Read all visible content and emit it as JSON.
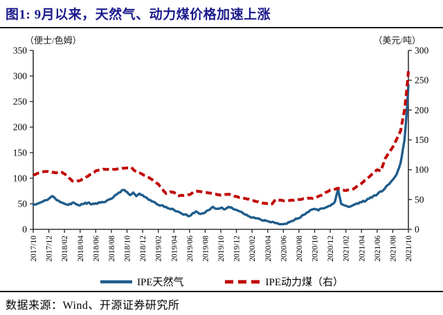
{
  "figure": {
    "title": "图1: 9月以来，天然气、动力煤价格加速上涨",
    "source_label": "数据来源：Wind、开源证券研究所"
  },
  "chart_data": {
    "type": "line",
    "title": "9月以来，天然气、动力煤价格加速上涨",
    "left_axis": {
      "unit": "（便士/色姆）",
      "min": 0,
      "max": 350,
      "step": 50
    },
    "right_axis": {
      "unit": "（美元/吨）",
      "min": 0,
      "max": 300,
      "step": 50
    },
    "x_tick_labels": [
      "2017/10",
      "2017/12",
      "2018/02",
      "2018/04",
      "2018/06",
      "2018/08",
      "2018/10",
      "2018/12",
      "2019/02",
      "2019/04",
      "2019/06",
      "2019/08",
      "2019/10",
      "2019/12",
      "2020/02",
      "2020/04",
      "2020/06",
      "2020/08",
      "2020/10",
      "2020/12",
      "2021/02",
      "2021/04",
      "2021/06",
      "2021/08",
      "2021/10"
    ],
    "x_months_total": 48,
    "grid": "off",
    "legend_position": "bottom",
    "series": [
      {
        "name": "IPE天然气",
        "axis": "left",
        "style": "solid",
        "color": "#1f5c8b",
        "points": [
          [
            0,
            49
          ],
          [
            0.5,
            50
          ],
          [
            1,
            53
          ],
          [
            2,
            60
          ],
          [
            2.5,
            65
          ],
          [
            3,
            57
          ],
          [
            3.5,
            53
          ],
          [
            4,
            50
          ],
          [
            4.5,
            48
          ],
          [
            5,
            52
          ],
          [
            5.5,
            49
          ],
          [
            6,
            47
          ],
          [
            6.5,
            50
          ],
          [
            7,
            52
          ],
          [
            7.5,
            49
          ],
          [
            8,
            51
          ],
          [
            9,
            53
          ],
          [
            10,
            60
          ],
          [
            10.5,
            67
          ],
          [
            11,
            72
          ],
          [
            11.5,
            77
          ],
          [
            12,
            73
          ],
          [
            12.4,
            67
          ],
          [
            12.8,
            72
          ],
          [
            13.2,
            65
          ],
          [
            13.6,
            70
          ],
          [
            14,
            67
          ],
          [
            14.4,
            63
          ],
          [
            15,
            57
          ],
          [
            16,
            48
          ],
          [
            17,
            44
          ],
          [
            18,
            38
          ],
          [
            19,
            31
          ],
          [
            20,
            26
          ],
          [
            20.8,
            35
          ],
          [
            21.4,
            30
          ],
          [
            22,
            33
          ],
          [
            23,
            44
          ],
          [
            23.5,
            40
          ],
          [
            24,
            42
          ],
          [
            24.5,
            39
          ],
          [
            25,
            44
          ],
          [
            25.5,
            41
          ],
          [
            26,
            38
          ],
          [
            27,
            30
          ],
          [
            27.5,
            26
          ],
          [
            28,
            23
          ],
          [
            29,
            20
          ],
          [
            30,
            16
          ],
          [
            31,
            12
          ],
          [
            31.7,
            10
          ],
          [
            32.3,
            11
          ],
          [
            33,
            16
          ],
          [
            34,
            22
          ],
          [
            35,
            33
          ],
          [
            36,
            40
          ],
          [
            36.5,
            37
          ],
          [
            37,
            41
          ],
          [
            38,
            46
          ],
          [
            38.6,
            54
          ],
          [
            39,
            78
          ],
          [
            39.4,
            50
          ],
          [
            40,
            46
          ],
          [
            40.5,
            44
          ],
          [
            41,
            48
          ],
          [
            42,
            53
          ],
          [
            43,
            60
          ],
          [
            43.5,
            65
          ],
          [
            44,
            68
          ],
          [
            45,
            80
          ],
          [
            45.5,
            88
          ],
          [
            46,
            97
          ],
          [
            46.5,
            108
          ],
          [
            47,
            130
          ],
          [
            47.5,
            175
          ],
          [
            47.8,
            230
          ],
          [
            48,
            282
          ]
        ]
      },
      {
        "name": "IPE动力煤（右）",
        "axis": "right",
        "style": "dashed",
        "color": "#c00000",
        "points": [
          [
            0,
            91
          ],
          [
            1,
            96
          ],
          [
            1.7,
            97
          ],
          [
            2,
            96
          ],
          [
            3,
            95
          ],
          [
            3.5,
            97
          ],
          [
            4,
            93
          ],
          [
            5,
            81
          ],
          [
            5.5,
            80
          ],
          [
            6,
            82
          ],
          [
            7,
            89
          ],
          [
            8,
            98
          ],
          [
            9,
            101
          ],
          [
            10,
            100
          ],
          [
            11,
            102
          ],
          [
            12,
            103
          ],
          [
            12.5,
            104
          ],
          [
            13,
            98
          ],
          [
            14,
            92
          ],
          [
            15,
            85
          ],
          [
            16,
            76
          ],
          [
            17,
            60
          ],
          [
            17.5,
            63
          ],
          [
            18,
            62
          ],
          [
            18.5,
            56
          ],
          [
            19,
            57
          ],
          [
            20,
            58
          ],
          [
            20.5,
            63
          ],
          [
            21,
            64
          ],
          [
            22,
            62
          ],
          [
            23,
            60
          ],
          [
            24,
            57
          ],
          [
            25,
            59
          ],
          [
            26,
            55
          ],
          [
            27,
            52
          ],
          [
            28,
            49
          ],
          [
            29,
            45
          ],
          [
            30,
            43
          ],
          [
            30.5,
            42
          ],
          [
            31,
            50
          ],
          [
            32,
            48
          ],
          [
            33,
            49
          ],
          [
            34,
            50
          ],
          [
            35,
            52
          ],
          [
            36,
            52
          ],
          [
            37,
            58
          ],
          [
            38,
            66
          ],
          [
            38.5,
            67
          ],
          [
            39,
            69
          ],
          [
            39.5,
            66
          ],
          [
            40,
            65
          ],
          [
            41,
            68
          ],
          [
            42,
            77
          ],
          [
            43,
            88
          ],
          [
            44,
            100
          ],
          [
            44.5,
            98
          ],
          [
            45,
            118
          ],
          [
            46,
            138
          ],
          [
            47,
            165
          ],
          [
            47.5,
            200
          ],
          [
            47.8,
            235
          ],
          [
            48,
            265
          ]
        ]
      }
    ]
  }
}
